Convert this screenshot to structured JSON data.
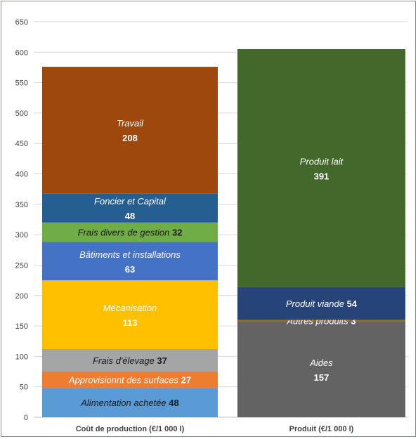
{
  "chart_data": {
    "type": "bar",
    "stacked": true,
    "ylim": [
      0,
      650
    ],
    "yticks": [
      0,
      50,
      100,
      150,
      200,
      250,
      300,
      350,
      400,
      450,
      500,
      550,
      600,
      650
    ],
    "grid": true,
    "legend": "none",
    "categories": [
      "Coût de production (€/1 000 l)",
      "Produit (€/1 000 l)"
    ],
    "stacks": [
      {
        "category": "Coût de production (€/1 000 l)",
        "segments": [
          {
            "name": "Alimentation achetée",
            "value": 48,
            "color": "#5b9bd5",
            "label_mode": "inline"
          },
          {
            "name": "Approvisionnt des surfaces",
            "value": 27,
            "color": "#ed7d31",
            "label_mode": "inline"
          },
          {
            "name": "Frais d'élevage",
            "value": 37,
            "color": "#a5a5a5",
            "label_mode": "inline"
          },
          {
            "name": "Mécanisation",
            "value": 113,
            "color": "#ffc000",
            "label_mode": "stacked"
          },
          {
            "name": "Bâtiments et installations",
            "value": 63,
            "color": "#4472c4",
            "label_mode": "stacked"
          },
          {
            "name": "Frais divers de gestion",
            "value": 32,
            "color": "#70ad47",
            "label_mode": "inline"
          },
          {
            "name": "Foncier et Capital",
            "value": 48,
            "color": "#255e91",
            "label_mode": "stacked"
          },
          {
            "name": "Travail",
            "value": 208,
            "color": "#9e480e",
            "label_mode": "stacked"
          }
        ]
      },
      {
        "category": "Produit (€/1 000 l)",
        "segments": [
          {
            "name": "Aides",
            "value": 157,
            "color": "#636363",
            "label_mode": "stacked"
          },
          {
            "name": "Autres produits",
            "value": 3,
            "color": "#997300",
            "label_mode": "inline"
          },
          {
            "name": "Produit viande",
            "value": 54,
            "color": "#264478",
            "label_mode": "inline"
          },
          {
            "name": "Produit lait",
            "value": 391,
            "color": "#43682b",
            "label_mode": "stacked"
          }
        ]
      }
    ]
  }
}
